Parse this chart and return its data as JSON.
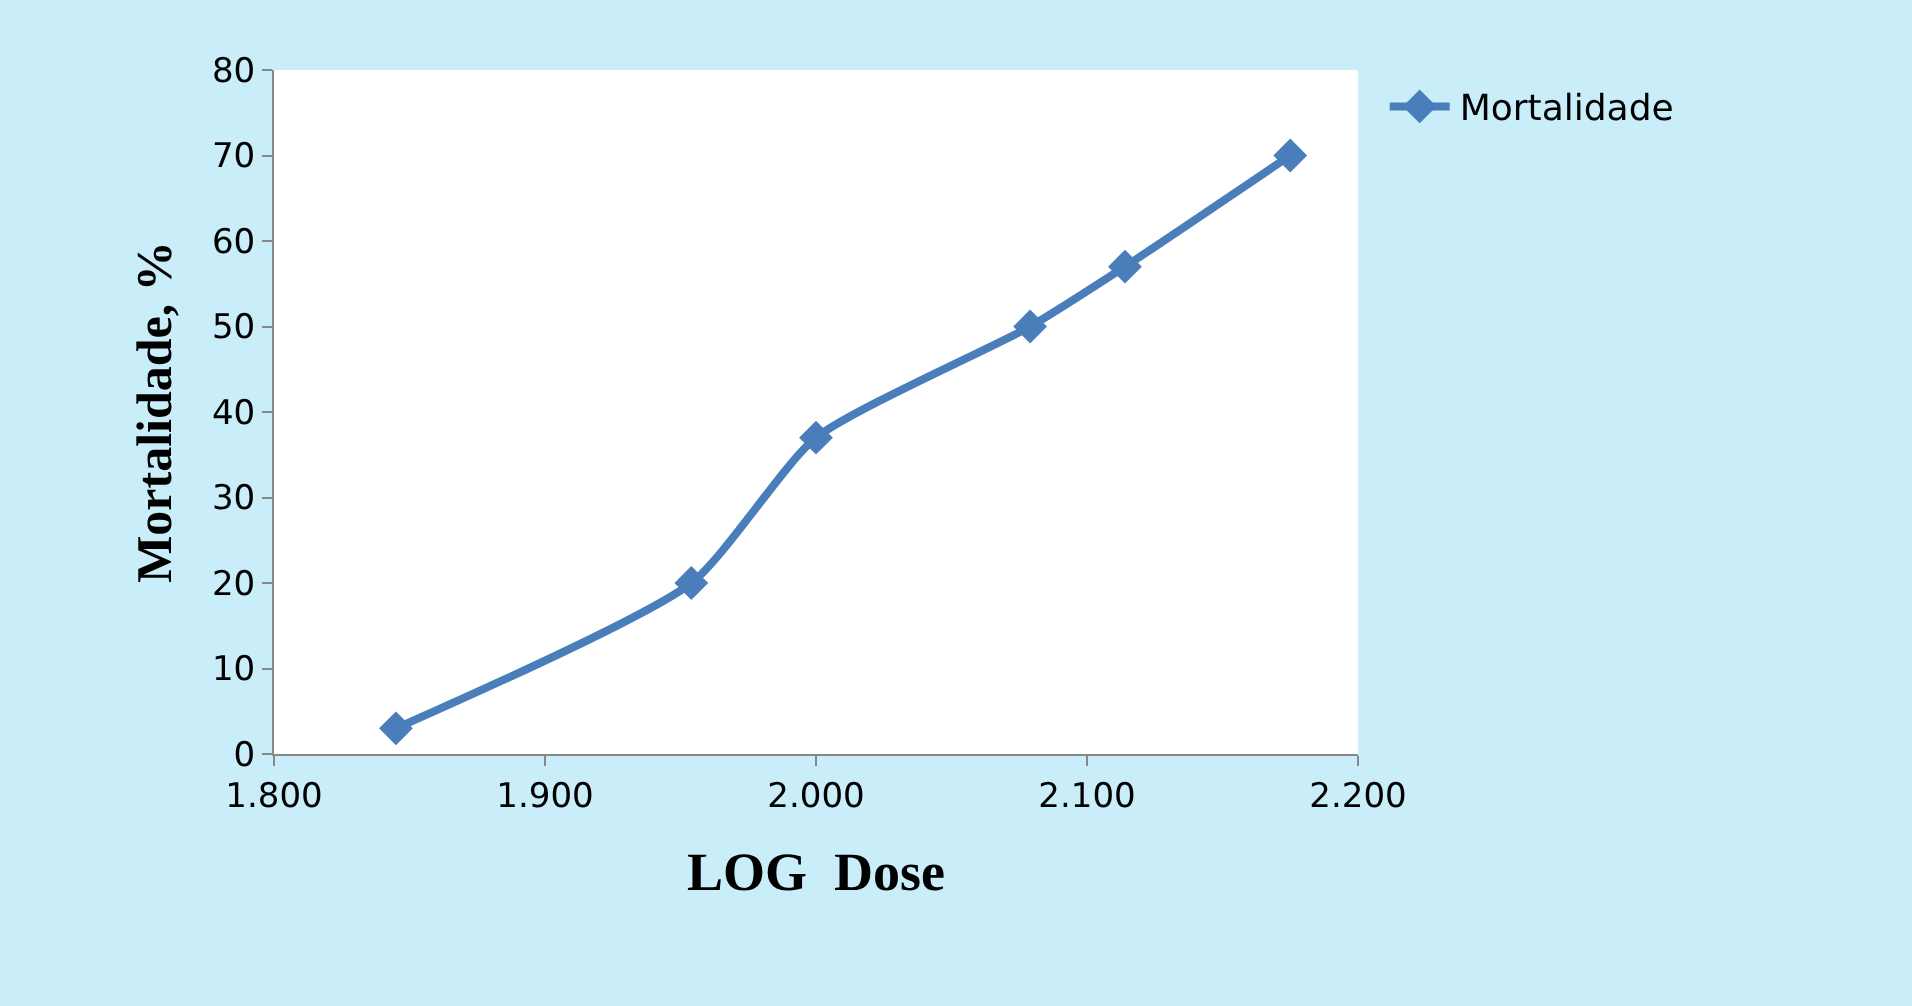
{
  "chart_data": {
    "type": "line",
    "xlabel": "LOG  Dose",
    "ylabel": "Mortalidade, %",
    "x": [
      1.845,
      1.954,
      2.0,
      2.079,
      2.114,
      2.175
    ],
    "series": [
      {
        "name": "Mortalidade",
        "color": "#4a7ebb",
        "values": [
          3,
          20,
          37,
          50,
          57,
          70
        ]
      }
    ],
    "xlim": [
      1.8,
      2.2
    ],
    "xticks": [
      {
        "value": 1.8,
        "label": "1.800"
      },
      {
        "value": 1.9,
        "label": "1.900"
      },
      {
        "value": 2.0,
        "label": "2.000"
      },
      {
        "value": 2.1,
        "label": "2.100"
      },
      {
        "value": 2.2,
        "label": "2.200"
      }
    ],
    "ylim": [
      0,
      80
    ],
    "yticks": [
      0,
      10,
      20,
      30,
      40,
      50,
      60,
      70,
      80
    ],
    "grid": false,
    "legend": "top right",
    "marker": "diamond",
    "line_style": "solid"
  }
}
